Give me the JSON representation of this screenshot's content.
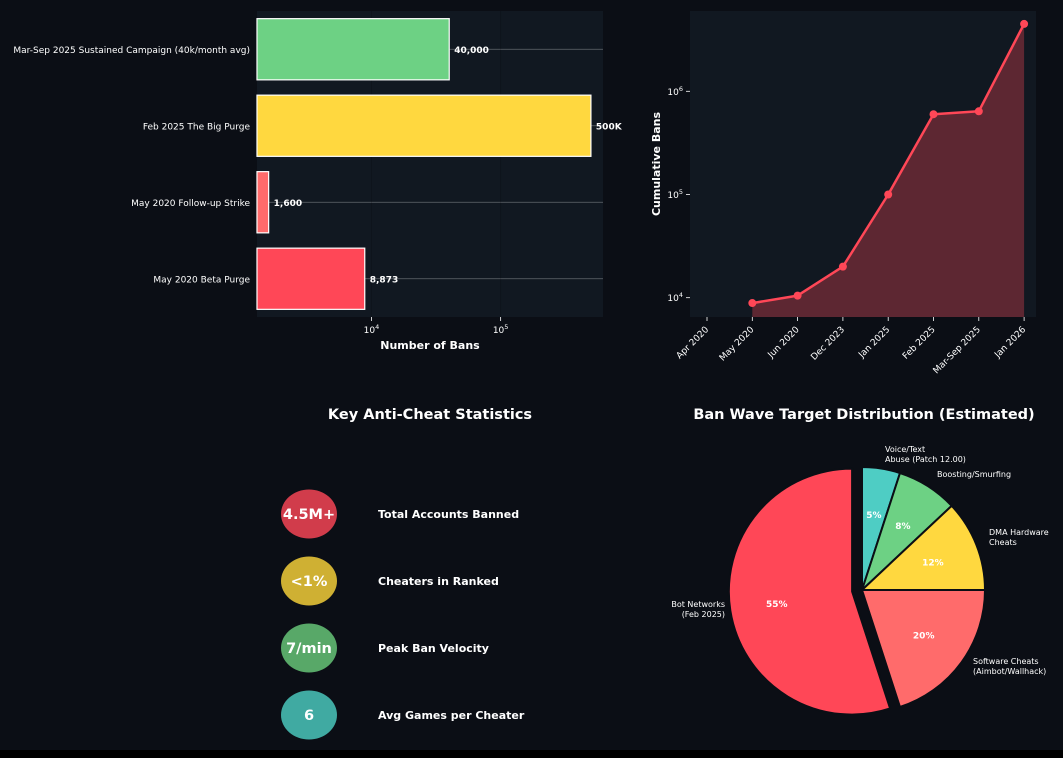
{
  "chart_data": [
    {
      "type": "bar",
      "orientation": "horizontal",
      "title": "",
      "xlabel": "Number of Bans",
      "ylabel": "",
      "x_scale": "log",
      "xlim": [
        1300,
        620000
      ],
      "x_ticks": [
        {
          "value": 10000,
          "base": "10",
          "exp": "4"
        },
        {
          "value": 100000,
          "base": "10",
          "exp": "5"
        }
      ],
      "categories": [
        "Mar-Sep 2025 Sustained Campaign (40k/month avg)",
        "Feb 2025 The Big Purge",
        "May 2020 Follow-up Strike",
        "May 2020 Beta Purge"
      ],
      "values": [
        40000,
        500000,
        1600,
        8873
      ],
      "value_labels": [
        "40,000",
        "500K",
        "1,600",
        "8,873"
      ],
      "colors": [
        "#6dd184",
        "#ffd83f",
        "#ff6b6b",
        "#ff4757"
      ],
      "grid": true
    },
    {
      "type": "line",
      "title": "",
      "xlabel": "",
      "ylabel": "Cumulative Bans",
      "y_scale": "log",
      "ylim": [
        6500,
        6000000
      ],
      "y_ticks": [
        {
          "value": 10000,
          "base": "10",
          "exp": "4"
        },
        {
          "value": 100000,
          "base": "10",
          "exp": "5"
        },
        {
          "value": 1000000,
          "base": "10",
          "exp": "6"
        }
      ],
      "x": [
        "Apr 2020",
        "May 2020",
        "Jun 2020",
        "Dec 2023",
        "Jan 2025",
        "Feb 2025",
        "Mar-Sep 2025",
        "Jan 2026"
      ],
      "series": [
        {
          "values": [
            null,
            8873,
            10473,
            20000,
            100000,
            600000,
            640000,
            4500000
          ],
          "color": "#ff4757"
        }
      ],
      "fill": "area",
      "grid": false
    },
    {
      "type": "pie",
      "title": "Ban Wave Target Distribution (Estimated)",
      "slices": [
        {
          "label": [
            "Voice/Text",
            "Abuse (Patch 12.00)"
          ],
          "value": 5,
          "pct": "5%",
          "color": "#4ecdc4"
        },
        {
          "label": [
            "Boosting/Smurfing"
          ],
          "value": 8,
          "pct": "8%",
          "color": "#6dd184"
        },
        {
          "label": [
            "DMA Hardware",
            "Cheats"
          ],
          "value": 12,
          "pct": "12%",
          "color": "#ffd83f"
        },
        {
          "label": [
            "Software Cheats",
            "(Aimbot/Wallhack)"
          ],
          "value": 20,
          "pct": "20%",
          "color": "#ff6b6b"
        },
        {
          "label": [
            "Bot Networks",
            "(Feb 2025)"
          ],
          "value": 55,
          "pct": "55%",
          "color": "#ff4757"
        }
      ]
    }
  ],
  "stats_panel": {
    "title": "Key Anti-Cheat Statistics",
    "items": [
      {
        "value": "4.5M+",
        "label": "Total Accounts Banned",
        "color": "#d13c4b"
      },
      {
        "value": "<1%",
        "label": "Cheaters in Ranked",
        "color": "#cfb033"
      },
      {
        "value": "7/min",
        "label": "Peak Ban Velocity",
        "color": "#58a868"
      },
      {
        "value": "6",
        "label": "Avg Games per Cheater",
        "color": "#40aaa2"
      }
    ]
  }
}
